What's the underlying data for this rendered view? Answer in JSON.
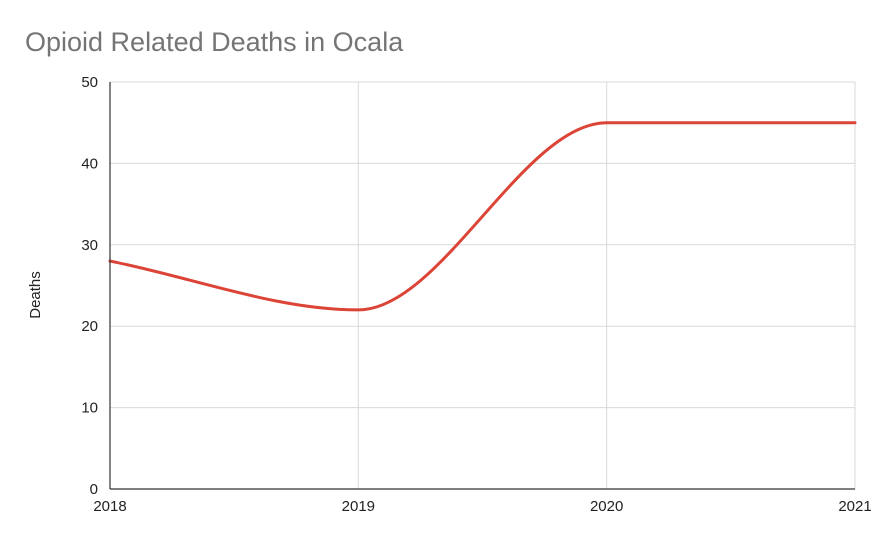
{
  "chart_data": {
    "type": "line",
    "title": "Opioid Related Deaths in Ocala",
    "xlabel": "",
    "ylabel": "Deaths",
    "x": [
      2018,
      2019,
      2020,
      2021
    ],
    "x_tick_labels": [
      "2018",
      "2019",
      "2020",
      "2021"
    ],
    "y_ticks": [
      0,
      10,
      20,
      30,
      40,
      50
    ],
    "ylim": [
      0,
      50
    ],
    "series": [
      {
        "values": [
          28,
          22,
          45,
          45
        ]
      }
    ],
    "smooth": true,
    "grid": true,
    "legend": "none",
    "colors": {
      "line": "#db4437",
      "grid": "#d9d9d9",
      "axis": "#333333"
    }
  }
}
